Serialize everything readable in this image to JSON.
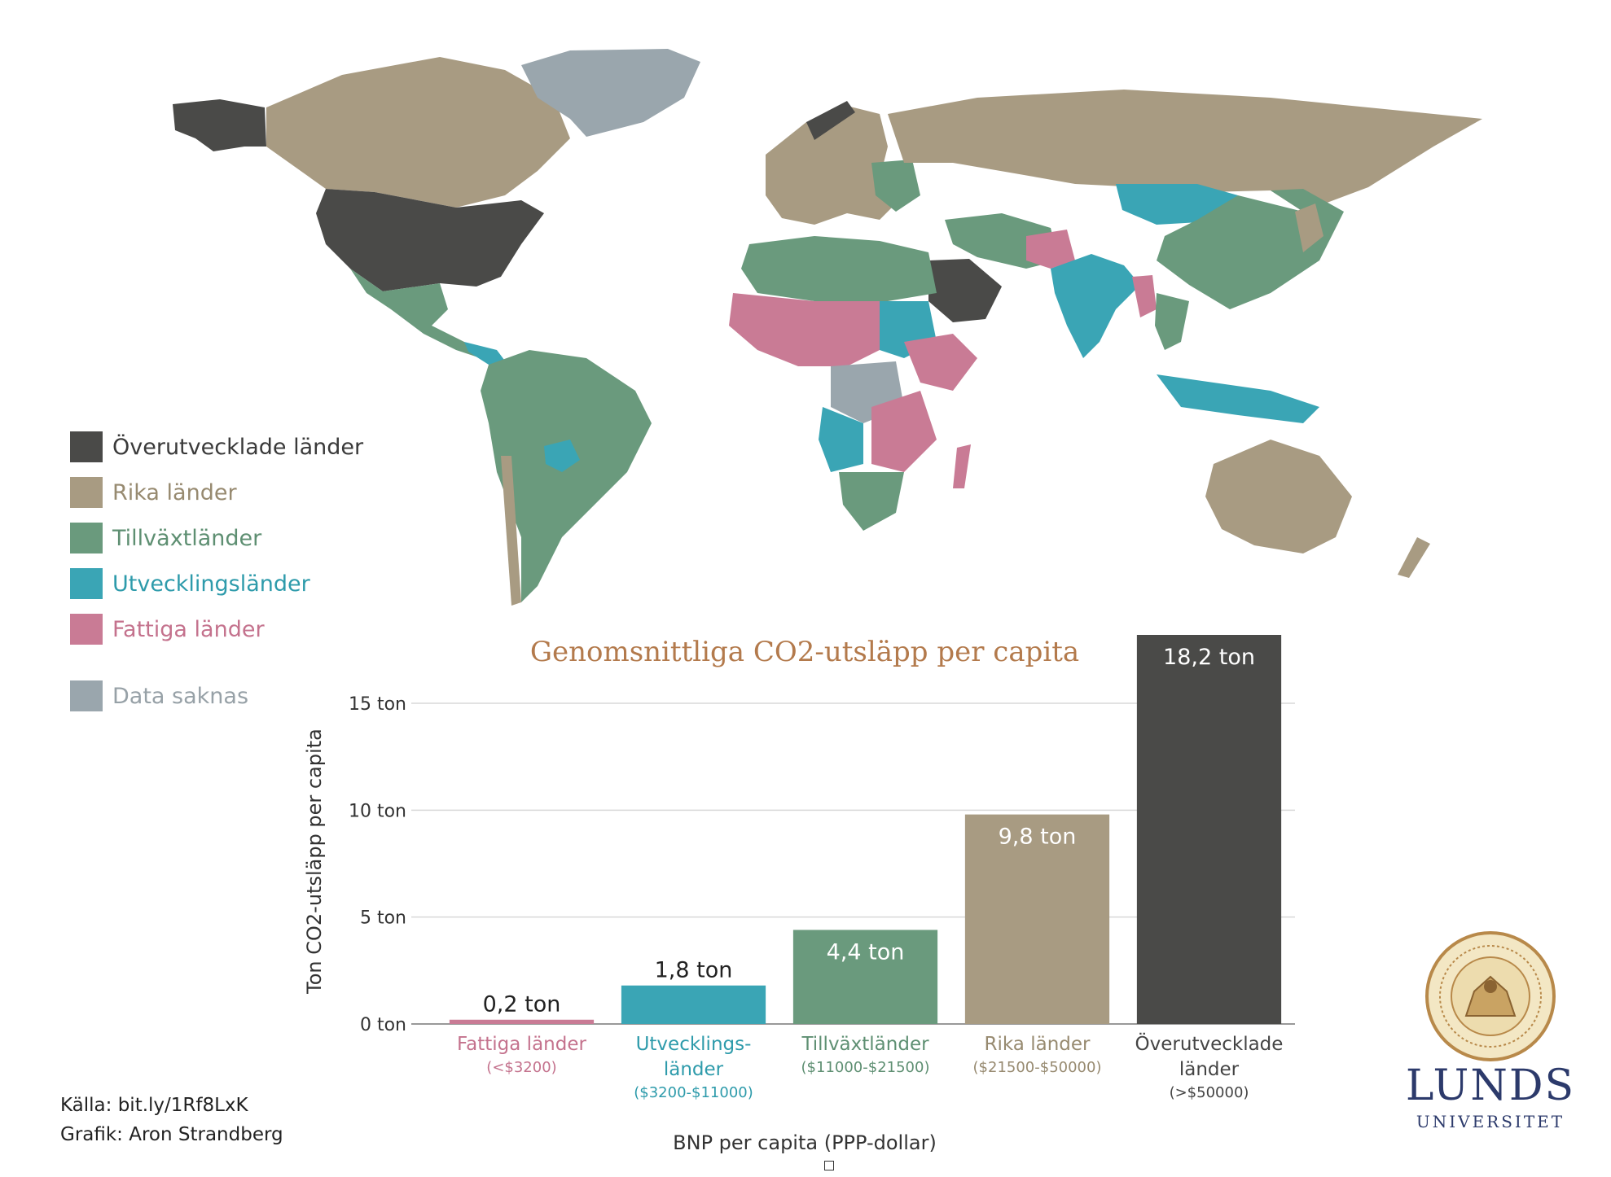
{
  "colors": {
    "overdeveloped": "#4a4a48",
    "rich": "#a89b82",
    "emerging": "#6a9a7d",
    "developing": "#3aa5b5",
    "poor": "#c97b95",
    "nodata": "#9aa6ad",
    "title": "#b37a4c"
  },
  "legend": [
    {
      "label": "Överutvecklade länder",
      "color": "#4a4a48",
      "text_color": "#3a3a3a"
    },
    {
      "label": "Rika länder",
      "color": "#a89b82",
      "text_color": "#978a70"
    },
    {
      "label": "Tillväxtländer",
      "color": "#6a9a7d",
      "text_color": "#5e8f72"
    },
    {
      "label": "Utvecklingsländer",
      "color": "#3aa5b5",
      "text_color": "#2e9bab"
    },
    {
      "label": "Fattiga länder",
      "color": "#c97b95",
      "text_color": "#c4728d"
    },
    {
      "label": "Data saknas",
      "color": "#9aa6ad",
      "text_color": "#97a1a7"
    }
  ],
  "chart_data": {
    "type": "bar",
    "title": "Genomsnittliga CO2-utsläpp per capita",
    "xlabel": "BNP per capita (PPP-dollar)",
    "ylabel": "Ton CO2-utsläpp per capita",
    "ylim": [
      0,
      18.2
    ],
    "yticks": [
      {
        "value": 0,
        "label": "0 ton"
      },
      {
        "value": 5,
        "label": "5 ton"
      },
      {
        "value": 10,
        "label": "10 ton"
      },
      {
        "value": 15,
        "label": "15 ton"
      }
    ],
    "grid": true,
    "categories": [
      {
        "name": [
          "Fattiga länder"
        ],
        "range": "(<$3200)",
        "color": "#c97b95",
        "label_color": "#c4728d"
      },
      {
        "name": [
          "Utvecklings-",
          "länder"
        ],
        "range": "($3200-$11000)",
        "color": "#3aa5b5",
        "label_color": "#2e9bab"
      },
      {
        "name": [
          "Tillväxtländer"
        ],
        "range": "($11000-$21500)",
        "color": "#6a9a7d",
        "label_color": "#5e8f72"
      },
      {
        "name": [
          "Rika länder"
        ],
        "range": "($21500-$50000)",
        "color": "#a89b82",
        "label_color": "#978a70"
      },
      {
        "name": [
          "Överutvecklade",
          "länder"
        ],
        "range": "(>$50000)",
        "color": "#4a4a48",
        "label_color": "#444444"
      }
    ],
    "values": [
      0.2,
      1.8,
      4.4,
      9.8,
      18.2
    ],
    "value_labels": [
      "0,2 ton",
      "1,8 ton",
      "4,4 ton",
      "9,8 ton",
      "18,2 ton"
    ]
  },
  "credits": {
    "source": "Källa: bit.ly/1Rf8LxK",
    "graphics": "Grafik: Aron Strandberg"
  },
  "logo": {
    "line1": "LUNDS",
    "line2": "UNIVERSITET"
  }
}
